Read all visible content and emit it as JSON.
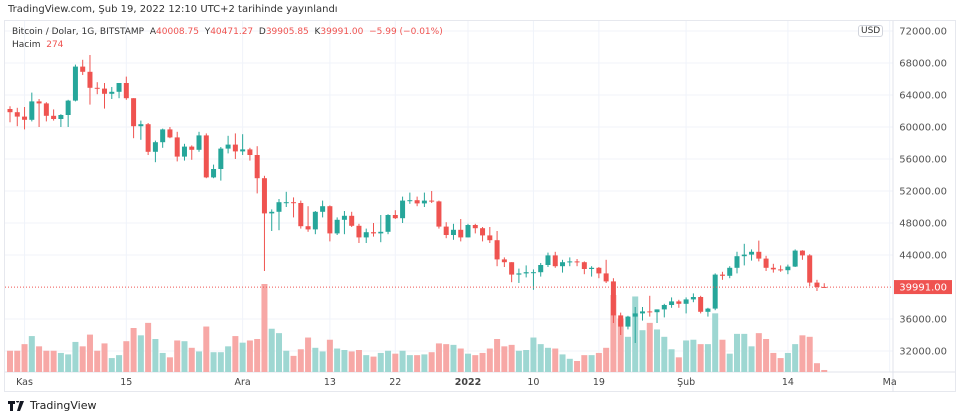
{
  "header": {
    "published": "TradingView.com, Şub 19, 2022 12:10 UTC+2 tarihinde yayınlandı"
  },
  "legend": {
    "symbol": "Bitcoin / Dolar, 1G, BITSTAMP",
    "open_label": "A",
    "open": "40008.75",
    "high_label": "Y",
    "high": "40471.27",
    "low_label": "D",
    "low": "39905.85",
    "close_label": "K",
    "close": "39991.00",
    "change": "−5.99 (−0.01%)",
    "volume_label": "Hacim",
    "volume": "274"
  },
  "currency": "USD",
  "footer": {
    "brand": "TradingView"
  },
  "colors": {
    "up": "#26a69a",
    "down": "#ef5350",
    "up_vol": "#9ed7d2",
    "down_vol": "#f7a8a6",
    "grid": "#f0f3fa"
  },
  "chart_data": {
    "type": "candlestick",
    "price_ticks": [
      "72000.00",
      "68000.00",
      "64000.00",
      "60000.00",
      "56000.00",
      "52000.00",
      "48000.00",
      "44000.00",
      "36000.00",
      "32000.00"
    ],
    "price_tick_values": [
      72000,
      68000,
      64000,
      60000,
      56000,
      52000,
      48000,
      44000,
      36000,
      32000
    ],
    "last_price": 39991.0,
    "last_price_label": "39991.00",
    "ylim": [
      30000,
      73000
    ],
    "time_labels": [
      "Kas",
      "15",
      "Ara",
      "13",
      "22",
      "2022",
      "10",
      "19",
      "Şub",
      "14",
      "Ma"
    ],
    "time_label_day_index": [
      2,
      16,
      32,
      44,
      53,
      63,
      72,
      81,
      93,
      107,
      121
    ],
    "candles_ohlcv": [
      [
        62250,
        62600,
        60600,
        61850,
        2900
      ],
      [
        61850,
        62400,
        60100,
        61300,
        2900
      ],
      [
        61300,
        62500,
        59700,
        60900,
        3800
      ],
      [
        60900,
        64300,
        60700,
        63200,
        4900
      ],
      [
        63200,
        63500,
        60000,
        62950,
        3500
      ],
      [
        62950,
        63100,
        60700,
        61400,
        2900
      ],
      [
        61400,
        62200,
        60800,
        61000,
        2900
      ],
      [
        61000,
        61600,
        60000,
        61500,
        2600
      ],
      [
        61500,
        63400,
        60000,
        63300,
        2400
      ],
      [
        63300,
        67800,
        63200,
        67550,
        4100
      ],
      [
        67550,
        68400,
        66500,
        66900,
        3500
      ],
      [
        66900,
        69000,
        62800,
        64900,
        5100
      ],
      [
        64900,
        65600,
        64100,
        64800,
        2900
      ],
      [
        64800,
        65500,
        62300,
        64150,
        3900
      ],
      [
        64150,
        65000,
        63500,
        64400,
        1900
      ],
      [
        64400,
        65500,
        63600,
        65500,
        2300
      ],
      [
        65500,
        66300,
        63400,
        63600,
        4200
      ],
      [
        63600,
        63600,
        58600,
        60100,
        6000
      ],
      [
        60100,
        60800,
        58400,
        60350,
        5000
      ],
      [
        60350,
        60500,
        56500,
        56900,
        6700
      ],
      [
        56900,
        58300,
        55600,
        58100,
        4500
      ],
      [
        58100,
        59800,
        57400,
        59700,
        2600
      ],
      [
        59700,
        60000,
        58600,
        58700,
        2000
      ],
      [
        58700,
        59400,
        55700,
        56300,
        4300
      ],
      [
        56300,
        57900,
        55800,
        57550,
        4200
      ],
      [
        57550,
        57700,
        55900,
        57150,
        3300
      ],
      [
        57150,
        59400,
        56900,
        58950,
        2800
      ],
      [
        58950,
        59200,
        53600,
        53700,
        6200
      ],
      [
        53700,
        55300,
        53600,
        54750,
        2700
      ],
      [
        54750,
        57500,
        53300,
        57300,
        2700
      ],
      [
        57300,
        58900,
        56700,
        57800,
        3500
      ],
      [
        57800,
        59200,
        56000,
        56950,
        4900
      ],
      [
        56950,
        59100,
        56500,
        57200,
        4000
      ],
      [
        57200,
        57400,
        55800,
        56500,
        4300
      ],
      [
        56500,
        57600,
        51700,
        53600,
        4500
      ],
      [
        53600,
        53900,
        42000,
        49200,
        12000
      ],
      [
        49200,
        49700,
        47000,
        49400,
        5900
      ],
      [
        49400,
        51000,
        47100,
        50600,
        5300
      ],
      [
        50600,
        51900,
        50000,
        50600,
        2900
      ],
      [
        50600,
        51200,
        48700,
        50500,
        2200
      ],
      [
        50500,
        50800,
        47300,
        47600,
        3100
      ],
      [
        47600,
        50100,
        46900,
        47200,
        4700
      ],
      [
        47200,
        49500,
        46600,
        49400,
        3300
      ],
      [
        49400,
        50800,
        48700,
        50100,
        2800
      ],
      [
        50100,
        50200,
        45700,
        46700,
        4400
      ],
      [
        46700,
        48700,
        46500,
        48400,
        3200
      ],
      [
        48400,
        49500,
        46600,
        48900,
        3000
      ],
      [
        48900,
        49400,
        47500,
        47650,
        2800
      ],
      [
        47650,
        47900,
        45500,
        46200,
        3000
      ],
      [
        46200,
        47300,
        45500,
        46850,
        2300
      ],
      [
        46850,
        48000,
        46300,
        46700,
        2100
      ],
      [
        46700,
        49000,
        45600,
        46900,
        2600
      ],
      [
        46900,
        49100,
        46600,
        49000,
        2900
      ],
      [
        49000,
        49600,
        48500,
        48600,
        2500
      ],
      [
        48600,
        51300,
        48000,
        50800,
        2900
      ],
      [
        50800,
        51800,
        50400,
        50850,
        2300
      ],
      [
        50850,
        51300,
        50100,
        50450,
        2300
      ],
      [
        50450,
        51800,
        50000,
        50800,
        2400
      ],
      [
        50800,
        52000,
        50500,
        50700,
        2700
      ],
      [
        50700,
        50800,
        47300,
        47550,
        3900
      ],
      [
        47550,
        48100,
        46100,
        46500,
        3800
      ],
      [
        46500,
        47900,
        45900,
        47150,
        3700
      ],
      [
        47150,
        48500,
        45700,
        46200,
        3200
      ],
      [
        46200,
        47900,
        46200,
        47750,
        2500
      ],
      [
        47750,
        47900,
        46700,
        47350,
        2300
      ],
      [
        47350,
        47500,
        45700,
        46450,
        2600
      ],
      [
        46450,
        47500,
        45500,
        45850,
        3200
      ],
      [
        45850,
        47000,
        42600,
        43450,
        4500
      ],
      [
        43450,
        43700,
        42500,
        43100,
        3500
      ],
      [
        43100,
        43100,
        40600,
        41550,
        3700
      ],
      [
        41550,
        42300,
        40500,
        41700,
        2900
      ],
      [
        41700,
        42700,
        41200,
        41850,
        3000
      ],
      [
        41850,
        42200,
        39650,
        41850,
        4700
      ],
      [
        41850,
        43000,
        41300,
        42750,
        3800
      ],
      [
        42750,
        44300,
        42500,
        43950,
        3300
      ],
      [
        43950,
        44400,
        42400,
        42600,
        3200
      ],
      [
        42600,
        43400,
        41800,
        43100,
        2400
      ],
      [
        43100,
        43700,
        42600,
        43200,
        1800
      ],
      [
        43200,
        43500,
        42600,
        43100,
        1500
      ],
      [
        43100,
        43200,
        41600,
        42250,
        2300
      ],
      [
        42250,
        42600,
        41300,
        42400,
        2300
      ],
      [
        42400,
        42500,
        41100,
        41700,
        2600
      ],
      [
        41700,
        43400,
        40500,
        40700,
        3300
      ],
      [
        40700,
        41100,
        35500,
        36450,
        10500
      ],
      [
        36450,
        36800,
        34000,
        35050,
        7300
      ],
      [
        35050,
        36400,
        34700,
        36300,
        4800
      ],
      [
        36300,
        37500,
        33000,
        36700,
        10300
      ],
      [
        36700,
        37500,
        35800,
        36950,
        5700
      ],
      [
        36950,
        38900,
        36300,
        36850,
        6700
      ],
      [
        36850,
        37200,
        35500,
        37200,
        5800
      ],
      [
        37200,
        37900,
        36200,
        37750,
        4800
      ],
      [
        37750,
        38700,
        37400,
        38200,
        3100
      ],
      [
        38200,
        38400,
        37400,
        37900,
        2000
      ],
      [
        37900,
        38700,
        36700,
        38450,
        4300
      ],
      [
        38450,
        39200,
        38100,
        38750,
        4400
      ],
      [
        38750,
        38900,
        36700,
        36900,
        3800
      ],
      [
        36900,
        37400,
        36300,
        37300,
        3800
      ],
      [
        37300,
        41700,
        37100,
        41550,
        8000
      ],
      [
        41550,
        41900,
        40900,
        41400,
        4400
      ],
      [
        41400,
        42600,
        41100,
        42400,
        2500
      ],
      [
        42400,
        44400,
        41700,
        43850,
        5200
      ],
      [
        43850,
        45400,
        42700,
        44050,
        5200
      ],
      [
        44050,
        44700,
        43300,
        44400,
        3500
      ],
      [
        44400,
        45800,
        43200,
        43550,
        5300
      ],
      [
        43550,
        43900,
        42000,
        42400,
        4500
      ],
      [
        42400,
        42900,
        41800,
        42200,
        2600
      ],
      [
        42200,
        42700,
        41900,
        42100,
        1900
      ],
      [
        42100,
        42800,
        41600,
        42550,
        2600
      ],
      [
        42550,
        44700,
        42500,
        44550,
        3800
      ],
      [
        44550,
        44600,
        43400,
        43950,
        5000
      ],
      [
        43950,
        44100,
        40100,
        40550,
        4800
      ],
      [
        40550,
        40900,
        39500,
        40000,
        1200
      ],
      [
        40008.75,
        40471.27,
        39905.85,
        39991.0,
        274
      ]
    ]
  }
}
